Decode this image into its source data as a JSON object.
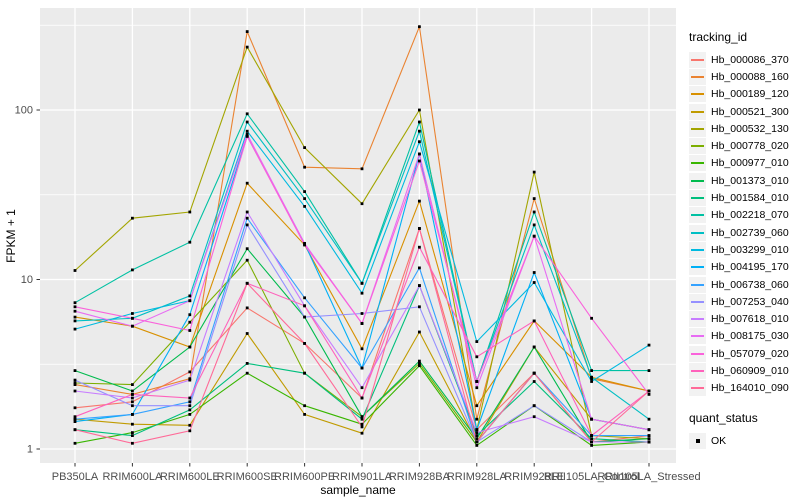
{
  "chart_data": {
    "type": "line",
    "title": "",
    "xlabel": "sample_name",
    "ylabel": "FPKM + 1",
    "y_scale": "log10",
    "y_ticks": [
      1,
      10,
      100
    ],
    "y_minor_ticks": [
      3.1623,
      31.623,
      316.23
    ],
    "ylim": [
      0.83,
      400
    ],
    "grid": true,
    "legend_position": "right",
    "panel_bg": "#EBEBEB",
    "grid_color": "#FFFFFF",
    "point_color": "#000000",
    "tick_text_color": "#4D4D4D",
    "categories": [
      "PB350LA",
      "RRIM600LA",
      "RRIM600LE",
      "RRIM600SE",
      "RRIM600PE",
      "RRIM901LA",
      "RRIM928BA",
      "RRIM928LA",
      "RRIM928LE",
      "RRII105LA_Control",
      "RRII105LA_Stressed"
    ],
    "series": [
      {
        "name": "Hb_000086_370",
        "color": "#F8766D",
        "values": [
          1.75,
          1.9,
          2.85,
          6.8,
          4.2,
          2.0,
          20,
          1.3,
          2.8,
          1.1,
          1.2
        ]
      },
      {
        "name": "Hb_000088_160",
        "color": "#EA8331",
        "values": [
          2.4,
          2.1,
          2.6,
          290,
          46,
          45,
          310,
          1.5,
          30,
          2.6,
          2.2
        ]
      },
      {
        "name": "Hb_000189_120",
        "color": "#D89000",
        "values": [
          6.0,
          5.3,
          4.0,
          37,
          16,
          3.9,
          29,
          1.8,
          5.7,
          2.65,
          2.2
        ]
      },
      {
        "name": "Hb_000521_300",
        "color": "#C09B00",
        "values": [
          1.5,
          1.4,
          1.38,
          4.8,
          1.6,
          1.24,
          4.9,
          1.1,
          4.0,
          1.5,
          1.3
        ]
      },
      {
        "name": "Hb_000532_130",
        "color": "#A3A500",
        "values": [
          11.3,
          23,
          25,
          235,
          60,
          28,
          100,
          1.3,
          43,
          1.2,
          1.15
        ]
      },
      {
        "name": "Hb_000778_020",
        "color": "#7CAE00",
        "values": [
          2.45,
          2.4,
          5.6,
          13,
          2.8,
          1.55,
          3.2,
          1.1,
          2.8,
          1.1,
          1.1
        ]
      },
      {
        "name": "Hb_000977_010",
        "color": "#39B600",
        "values": [
          1.08,
          1.25,
          1.6,
          2.8,
          1.8,
          1.4,
          3.1,
          1.05,
          1.8,
          1.05,
          1.1
        ]
      },
      {
        "name": "Hb_001373_010",
        "color": "#00BB4E",
        "values": [
          2.9,
          2.2,
          4.0,
          15.2,
          6.0,
          1.55,
          3.3,
          1.15,
          4.0,
          1.1,
          1.15
        ]
      },
      {
        "name": "Hb_001584_010",
        "color": "#00BF7D",
        "values": [
          1.3,
          1.2,
          1.7,
          3.2,
          2.8,
          1.5,
          9.2,
          1.2,
          2.5,
          1.15,
          1.1
        ]
      },
      {
        "name": "Hb_002218_070",
        "color": "#00C1A3",
        "values": [
          7.3,
          11.4,
          16.6,
          95,
          33,
          9.5,
          85,
          2.5,
          25,
          2.9,
          2.9
        ]
      },
      {
        "name": "Hb_002739_060",
        "color": "#00BFC4",
        "values": [
          5.7,
          5.9,
          8.0,
          85,
          30,
          9.5,
          75,
          2.5,
          21,
          2.65,
          1.5
        ]
      },
      {
        "name": "Hb_003299_010",
        "color": "#00BAE0",
        "values": [
          5.1,
          6.3,
          7.5,
          75,
          27,
          8.3,
          65,
          4.3,
          9.6,
          2.5,
          4.1
        ]
      },
      {
        "name": "Hb_004195_170",
        "color": "#00B0F6",
        "values": [
          1.45,
          1.6,
          6.2,
          70,
          16.3,
          3.0,
          55,
          1.3,
          11,
          1.5,
          1.3
        ]
      },
      {
        "name": "Hb_006738_060",
        "color": "#35A2FF",
        "values": [
          1.5,
          1.6,
          1.9,
          23,
          7.8,
          3.0,
          11.7,
          1.1,
          2.8,
          1.2,
          1.2
        ]
      },
      {
        "name": "Hb_007253_040",
        "color": "#9590FF",
        "values": [
          2.55,
          1.8,
          1.8,
          21,
          6.0,
          6.3,
          6.9,
          1.1,
          1.8,
          1.1,
          1.1
        ]
      },
      {
        "name": "Hb_007618_010",
        "color": "#C77CFF",
        "values": [
          2.2,
          2.0,
          2.55,
          25,
          7.0,
          2.3,
          9.2,
          1.25,
          1.55,
          1.1,
          1.1
        ]
      },
      {
        "name": "Hb_008175_030",
        "color": "#E76BF3",
        "values": [
          6.5,
          5.3,
          7.5,
          72,
          16.3,
          5.5,
          55,
          2.3,
          18,
          1.5,
          1.3
        ]
      },
      {
        "name": "Hb_057079_020",
        "color": "#FA62DB",
        "values": [
          6.9,
          5.9,
          5.0,
          70,
          16,
          5.5,
          50,
          2.5,
          18,
          5.9,
          2.1
        ]
      },
      {
        "name": "Hb_060909_010",
        "color": "#FF62BC",
        "values": [
          1.55,
          2.1,
          2.0,
          9.5,
          7.0,
          2.0,
          15.5,
          3.5,
          5.7,
          1.2,
          2.2
        ]
      },
      {
        "name": "Hb_164010_090",
        "color": "#FF6A98",
        "values": [
          1.3,
          1.08,
          1.28,
          9.5,
          4.2,
          1.35,
          20,
          1.1,
          2.8,
          1.1,
          2.2
        ]
      }
    ],
    "legend": {
      "tracking_title": "tracking_id",
      "quant_title": "quant_status",
      "quant_items": [
        {
          "label": "OK"
        }
      ]
    }
  }
}
